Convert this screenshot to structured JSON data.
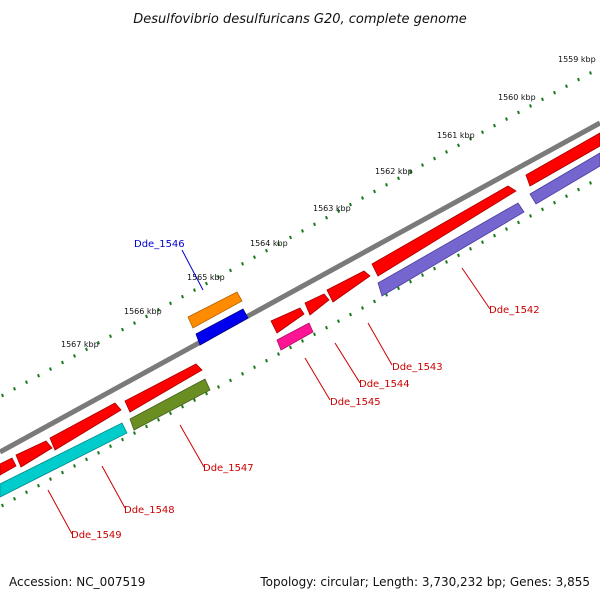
{
  "title": "Desulfovibrio desulfuricans G20, complete genome",
  "footer": {
    "accession": "Accession: NC_007519",
    "topology": "Topology: circular; Length: 3,730,232 bp; Genes: 3,855"
  },
  "colors": {
    "backbone": "#7a7a7a",
    "tick": "#1a7a1a",
    "label_red": "#cc0000",
    "label_blue": "#0000cc"
  },
  "ticks": [
    {
      "label": "1559 kbp"
    },
    {
      "label": "1560 kbp"
    },
    {
      "label": "1561 kbp"
    },
    {
      "label": "1562 kbp"
    },
    {
      "label": "1563 kbp"
    },
    {
      "label": "1564 kbp"
    },
    {
      "label": "1565 kbp"
    },
    {
      "label": "1566 kbp"
    },
    {
      "label": "1567 kbp"
    }
  ],
  "genes": [
    {
      "name": "Dde_1542",
      "color": "#7566cf",
      "label_color": "red"
    },
    {
      "name": "Dde_1543",
      "color": "#ff0000",
      "label_color": "red"
    },
    {
      "name": "Dde_1544",
      "color": "#ff0000",
      "label_color": "red"
    },
    {
      "name": "Dde_1545",
      "color": "#ff1493",
      "label_color": "red"
    },
    {
      "name": "Dde_1546",
      "color": "#ff8c00",
      "label_color": "blue"
    },
    {
      "name": "Dde_1547",
      "color": "#6b8e23",
      "label_color": "red"
    },
    {
      "name": "Dde_1548",
      "color": "#00cccc",
      "label_color": "red"
    },
    {
      "name": "Dde_1549",
      "color": "#ff0000",
      "label_color": "red"
    }
  ]
}
